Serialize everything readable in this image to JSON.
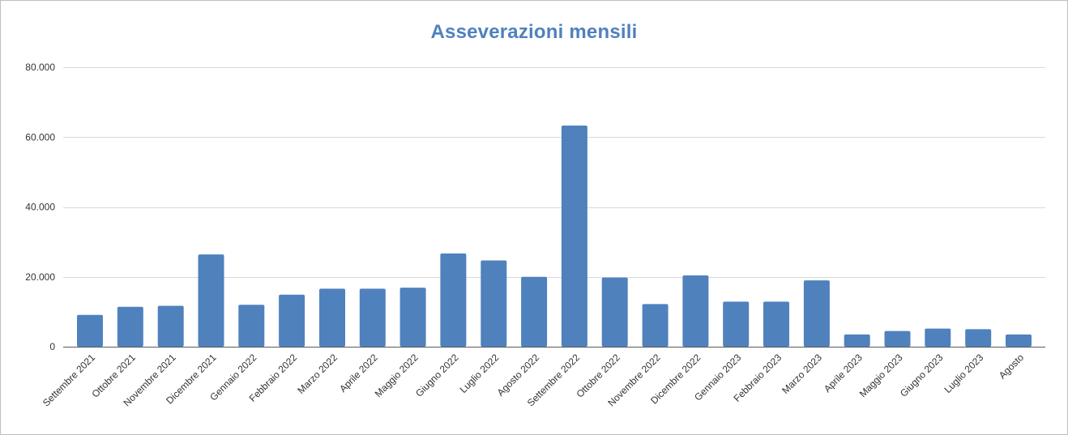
{
  "chart_data": {
    "type": "bar",
    "title": "Asseverazioni mensili",
    "xlabel": "",
    "ylabel": "",
    "ylim": [
      0,
      80000
    ],
    "yticks": [
      0,
      20000,
      40000,
      60000,
      80000
    ],
    "ytick_labels": [
      "0",
      "20.000",
      "40.000",
      "60.000",
      "80.000"
    ],
    "grid": true,
    "legend": "none",
    "bar_color": "#4f81bd",
    "title_color": "#4f81bd",
    "categories": [
      "Settembre 2021",
      "Ottobre 2021",
      "Novembre 2021",
      "Dicembre 2021",
      "Gennaio 2022",
      "Febbraio 2022",
      "Marzo 2022",
      "Aprile 2022",
      "Maggio 2022",
      "Giugno 2022",
      "Luglio 2022",
      "Agosto 2022",
      "Settembre 2022",
      "Ottobre 2022",
      "Novembre 2022",
      "Dicembre 2022",
      "Gennaio 2023",
      "Febbraio 2023",
      "Marzo 2023",
      "Aprile 2023",
      "Maggio 2023",
      "Giugno 2023",
      "Luglio 2023",
      "Agosto"
    ],
    "values": [
      9100,
      11400,
      11700,
      26400,
      12000,
      14900,
      16600,
      16600,
      16900,
      26700,
      24700,
      20000,
      63300,
      19800,
      12200,
      20400,
      12900,
      12900,
      19000,
      3500,
      4500,
      5200,
      5000,
      3500
    ]
  }
}
